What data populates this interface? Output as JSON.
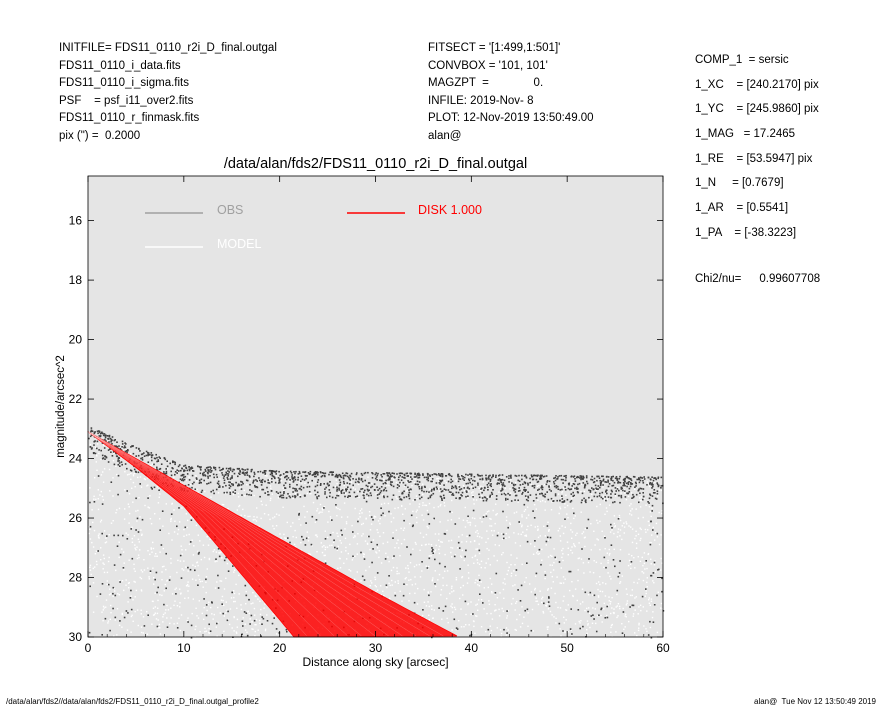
{
  "header_left": [
    "INITFILE= FDS11_0110_r2i_D_final.outgal",
    "FDS11_0110_i_data.fits",
    "FDS11_0110_i_sigma.fits",
    "PSF    = psf_i11_over2.fits",
    "FDS11_0110_r_finmask.fits",
    "pix (\") =  0.2000"
  ],
  "header_middle": [
    "FITSECT = '[1:499,1:501]'",
    "CONVBOX = '101, 101'",
    "MAGZPT  =              0.",
    "INFILE: 2019-Nov- 8",
    "PLOT: 12-Nov-2019 13:50:49.00",
    "alan@"
  ],
  "header_right": [
    "COMP_1  = sersic",
    "1_XC    = [240.2170] pix",
    "1_YC    = [245.9860] pix",
    "1_MAG   = 17.2465",
    "1_RE    = [53.5947] pix",
    "1_N     = [0.7679]",
    "1_AR    = [0.5541]",
    "1_PA    = [-38.3223]"
  ],
  "chi": {
    "label": "Chi2/nu=",
    "value": "0.99607708"
  },
  "footer": {
    "left": "/data/alan/fds2//data/alan/fds2/FDS11_0110_r2i_D_final.outgal_profile2",
    "right": "alan@  Tue Nov 12 13:50:49 2019"
  },
  "colors": {
    "background": "#e5e5e5",
    "obs": "#a0a0a0",
    "model": "#ffffff",
    "disk": "#ff0000",
    "points_dark": "#404040"
  },
  "chart_data": {
    "type": "scatter",
    "title": "/data/alan/fds2/FDS11_0110_r2i_D_final.outgal",
    "xlabel": "Distance along sky [arcsec]",
    "ylabel": "magnitude/arcsec^2",
    "xlim": [
      0,
      60
    ],
    "ylim": [
      30,
      14.5
    ],
    "y_inverted": true,
    "x_ticks": [
      "0",
      "10",
      "20",
      "30",
      "40",
      "50",
      "60"
    ],
    "y_ticks": [
      "16",
      "18",
      "20",
      "22",
      "24",
      "26",
      "28",
      "30"
    ],
    "legend": [
      {
        "name": "OBS",
        "color": "#a0a0a0"
      },
      {
        "name": "MODEL",
        "color": "#ffffff"
      },
      {
        "name": "DISK  1.000",
        "color": "#ff0000"
      }
    ],
    "series": [
      {
        "name": "OBS",
        "description": "dense dark points",
        "upper_envelope": {
          "x": [
            0,
            5,
            10,
            20,
            40,
            60
          ],
          "y": [
            22.9,
            23.6,
            24.2,
            24.4,
            24.5,
            24.6
          ]
        }
      },
      {
        "name": "MODEL",
        "description": "white points"
      },
      {
        "name": "DISK  1.000",
        "bright_edge": {
          "x": [
            0,
            10,
            20,
            30,
            38.7
          ],
          "y": [
            23.1,
            24.9,
            26.7,
            28.5,
            30.0
          ]
        },
        "faint_edge": {
          "x": [
            0,
            5,
            10,
            15,
            21.5
          ],
          "y": [
            23.1,
            24.3,
            25.6,
            27.5,
            30.0
          ]
        }
      }
    ]
  }
}
